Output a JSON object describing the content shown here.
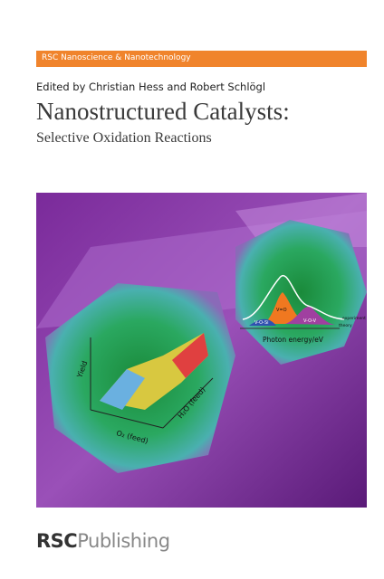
{
  "header": {
    "series": "RSC Nanoscience & Nanotechnology",
    "editors": "Edited by Christian Hess and Robert Schlögl",
    "title": "Nanostructured Catalysts:",
    "subtitle": "Selective Oxidation Reactions"
  },
  "figure": {
    "yield_label": "Yield",
    "o2_label": "O₂ (feed)",
    "h2o_label": "H₂O (feed)",
    "peak_vo": "V=O",
    "peak_vov": "V-O-V",
    "peak_vosi": "V-O-Si",
    "experiment": "experiment",
    "theory": "theory",
    "x_label": "Photon energy/eV"
  },
  "footer": {
    "publisher_rsc": "RSC",
    "publisher_publishing": "Publishing"
  }
}
